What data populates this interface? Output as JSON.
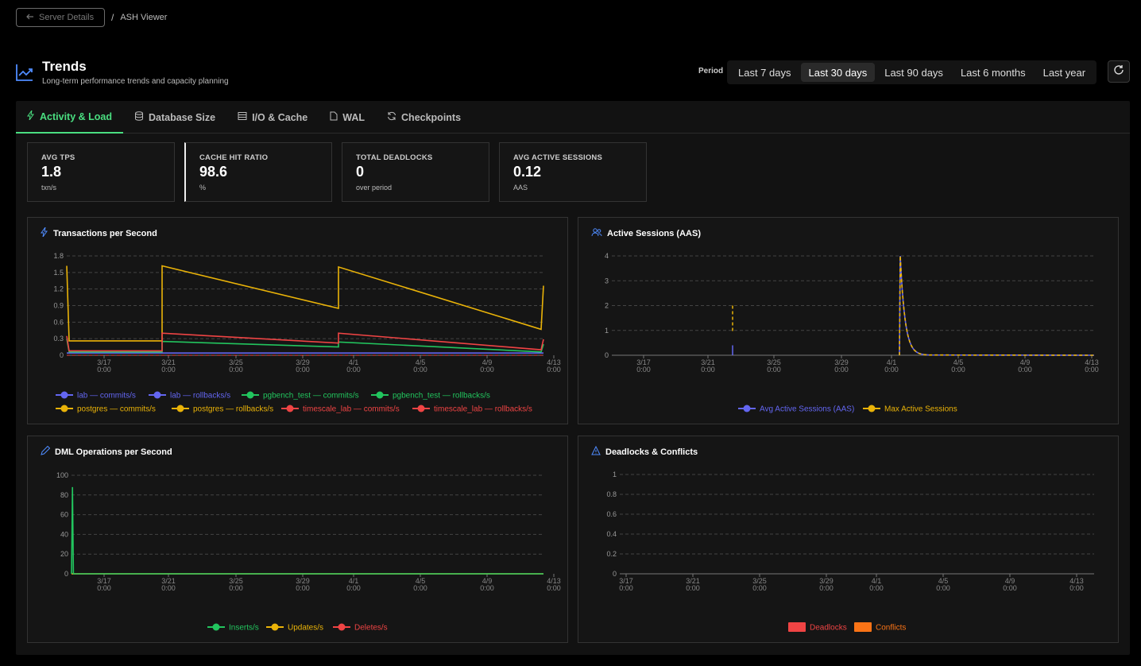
{
  "breadcrumb": {
    "back_label": "Server Details",
    "separator": "/",
    "current": "ASH Viewer"
  },
  "header": {
    "title": "Trends",
    "subtitle": "Long-term performance trends and capacity planning",
    "icon": "trend-up-icon"
  },
  "period": {
    "label": "Period",
    "options": [
      "Last 7 days",
      "Last 30 days",
      "Last 90 days",
      "Last 6 months",
      "Last year"
    ],
    "selected": "Last 30 days"
  },
  "tabs": [
    {
      "label": "Activity & Load",
      "icon": "bolt-icon",
      "active": true
    },
    {
      "label": "Database Size",
      "icon": "database-icon"
    },
    {
      "label": "I/O & Cache",
      "icon": "server-icon"
    },
    {
      "label": "WAL",
      "icon": "file-icon"
    },
    {
      "label": "Checkpoints",
      "icon": "refresh-icon"
    }
  ],
  "stats": [
    {
      "label": "AVG TPS",
      "value": "1.8",
      "unit": "txn/s"
    },
    {
      "label": "CACHE HIT RATIO",
      "value": "98.6",
      "unit": "%"
    },
    {
      "label": "TOTAL DEADLOCKS",
      "value": "0",
      "unit": "over period"
    },
    {
      "label": "AVG ACTIVE SESSIONS",
      "value": "0.12",
      "unit": "AAS"
    }
  ],
  "colors": {
    "accent": "#4ade80",
    "lab": "#6366f1",
    "pgbench": "#22c55e",
    "postgres": "#eab308",
    "timescale": "#ef4444",
    "orange": "#f97316"
  },
  "chart_data": [
    {
      "type": "line",
      "title": "Transactions per Second",
      "x_ticks": [
        "3/17 0:00",
        "3/21 0:00",
        "3/25 0:00",
        "3/29 0:00",
        "4/1 0:00",
        "4/5 0:00",
        "4/9 0:00",
        "4/13 0:00"
      ],
      "yticks": [
        "0",
        "0.3",
        "0.6",
        "0.9",
        "1.2",
        "1.5",
        "1.8"
      ],
      "ylim": [
        0,
        1.8
      ],
      "series": [
        {
          "name": "lab — commits/s",
          "color": "#6366f1",
          "x": [
            0,
            0.01,
            0.2,
            0.2,
            0.57,
            0.57,
            1
          ],
          "values": [
            0.04,
            0.04,
            0.04,
            0.04,
            0.04,
            0.04,
            0.04
          ]
        },
        {
          "name": "lab — rollbacks/s",
          "color": "#6366f1",
          "x": [
            0,
            1
          ],
          "values": [
            0,
            0
          ]
        },
        {
          "name": "pgbench_test — commits/s",
          "color": "#22c55e",
          "x": [
            0,
            0.005,
            0.2,
            0.2,
            0.57,
            0.57,
            0.995,
            1
          ],
          "values": [
            0.3,
            0.06,
            0.06,
            0.25,
            0.15,
            0.24,
            0.06,
            0.2
          ]
        },
        {
          "name": "pgbench_test — rollbacks/s",
          "color": "#22c55e",
          "x": [
            0,
            1
          ],
          "values": [
            0,
            0
          ]
        },
        {
          "name": "postgres — commits/s",
          "color": "#eab308",
          "x": [
            0,
            0.005,
            0.2,
            0.2,
            0.57,
            0.57,
            0.995,
            1
          ],
          "values": [
            1.62,
            0.26,
            0.26,
            1.62,
            0.85,
            1.6,
            0.47,
            1.26
          ]
        },
        {
          "name": "postgres — rollbacks/s",
          "color": "#eab308",
          "x": [
            0,
            1
          ],
          "values": [
            0,
            0
          ]
        },
        {
          "name": "timescale_lab — commits/s",
          "color": "#ef4444",
          "x": [
            0,
            0.005,
            0.2,
            0.2,
            0.57,
            0.57,
            0.995,
            1
          ],
          "values": [
            0.35,
            0.08,
            0.08,
            0.4,
            0.22,
            0.4,
            0.1,
            0.29
          ]
        },
        {
          "name": "timescale_lab — rollbacks/s",
          "color": "#ef4444",
          "x": [
            0,
            1
          ],
          "values": [
            0,
            0
          ]
        }
      ]
    },
    {
      "type": "line",
      "title": "Active Sessions (AAS)",
      "x_ticks": [
        "3/17 0:00",
        "3/21 0:00",
        "3/25 0:00",
        "3/29 0:00",
        "4/1 0:00",
        "4/5 0:00",
        "4/9 0:00",
        "4/13 0:00"
      ],
      "yticks": [
        "0",
        "1",
        "2",
        "3",
        "4"
      ],
      "ylim": [
        0,
        4
      ],
      "series": [
        {
          "name": "Avg Active Sessions (AAS)",
          "color": "#6366f1"
        },
        {
          "name": "Max Active Sessions",
          "color": "#eab308"
        }
      ]
    },
    {
      "type": "line",
      "title": "DML Operations per Second",
      "x_ticks": [
        "3/17 0:00",
        "3/21 0:00",
        "3/25 0:00",
        "3/29 0:00",
        "4/1 0:00",
        "4/5 0:00",
        "4/9 0:00",
        "4/13 0:00"
      ],
      "yticks": [
        "0",
        "20",
        "40",
        "60",
        "80",
        "100"
      ],
      "ylim": [
        0,
        100
      ],
      "series": [
        {
          "name": "Inserts/s",
          "color": "#22c55e",
          "x": [
            0,
            0.002,
            0.004,
            1
          ],
          "values": [
            0,
            88,
            0,
            0
          ]
        },
        {
          "name": "Updates/s",
          "color": "#eab308",
          "x": [
            0,
            1
          ],
          "values": [
            0,
            0
          ]
        },
        {
          "name": "Deletes/s",
          "color": "#ef4444",
          "x": [
            0,
            1
          ],
          "values": [
            0,
            0
          ]
        }
      ]
    },
    {
      "type": "bar",
      "title": "Deadlocks & Conflicts",
      "x_ticks": [
        "3/17 0:00",
        "3/21 0:00",
        "3/25 0:00",
        "3/29 0:00",
        "4/1 0:00",
        "4/5 0:00",
        "4/9 0:00",
        "4/13 0:00"
      ],
      "yticks": [
        "0",
        "0.2",
        "0.4",
        "0.6",
        "0.8",
        "1"
      ],
      "ylim": [
        0,
        1
      ],
      "series": [
        {
          "name": "Deadlocks",
          "color": "#ef4444",
          "values": []
        },
        {
          "name": "Conflicts",
          "color": "#f97316",
          "values": []
        }
      ]
    }
  ]
}
